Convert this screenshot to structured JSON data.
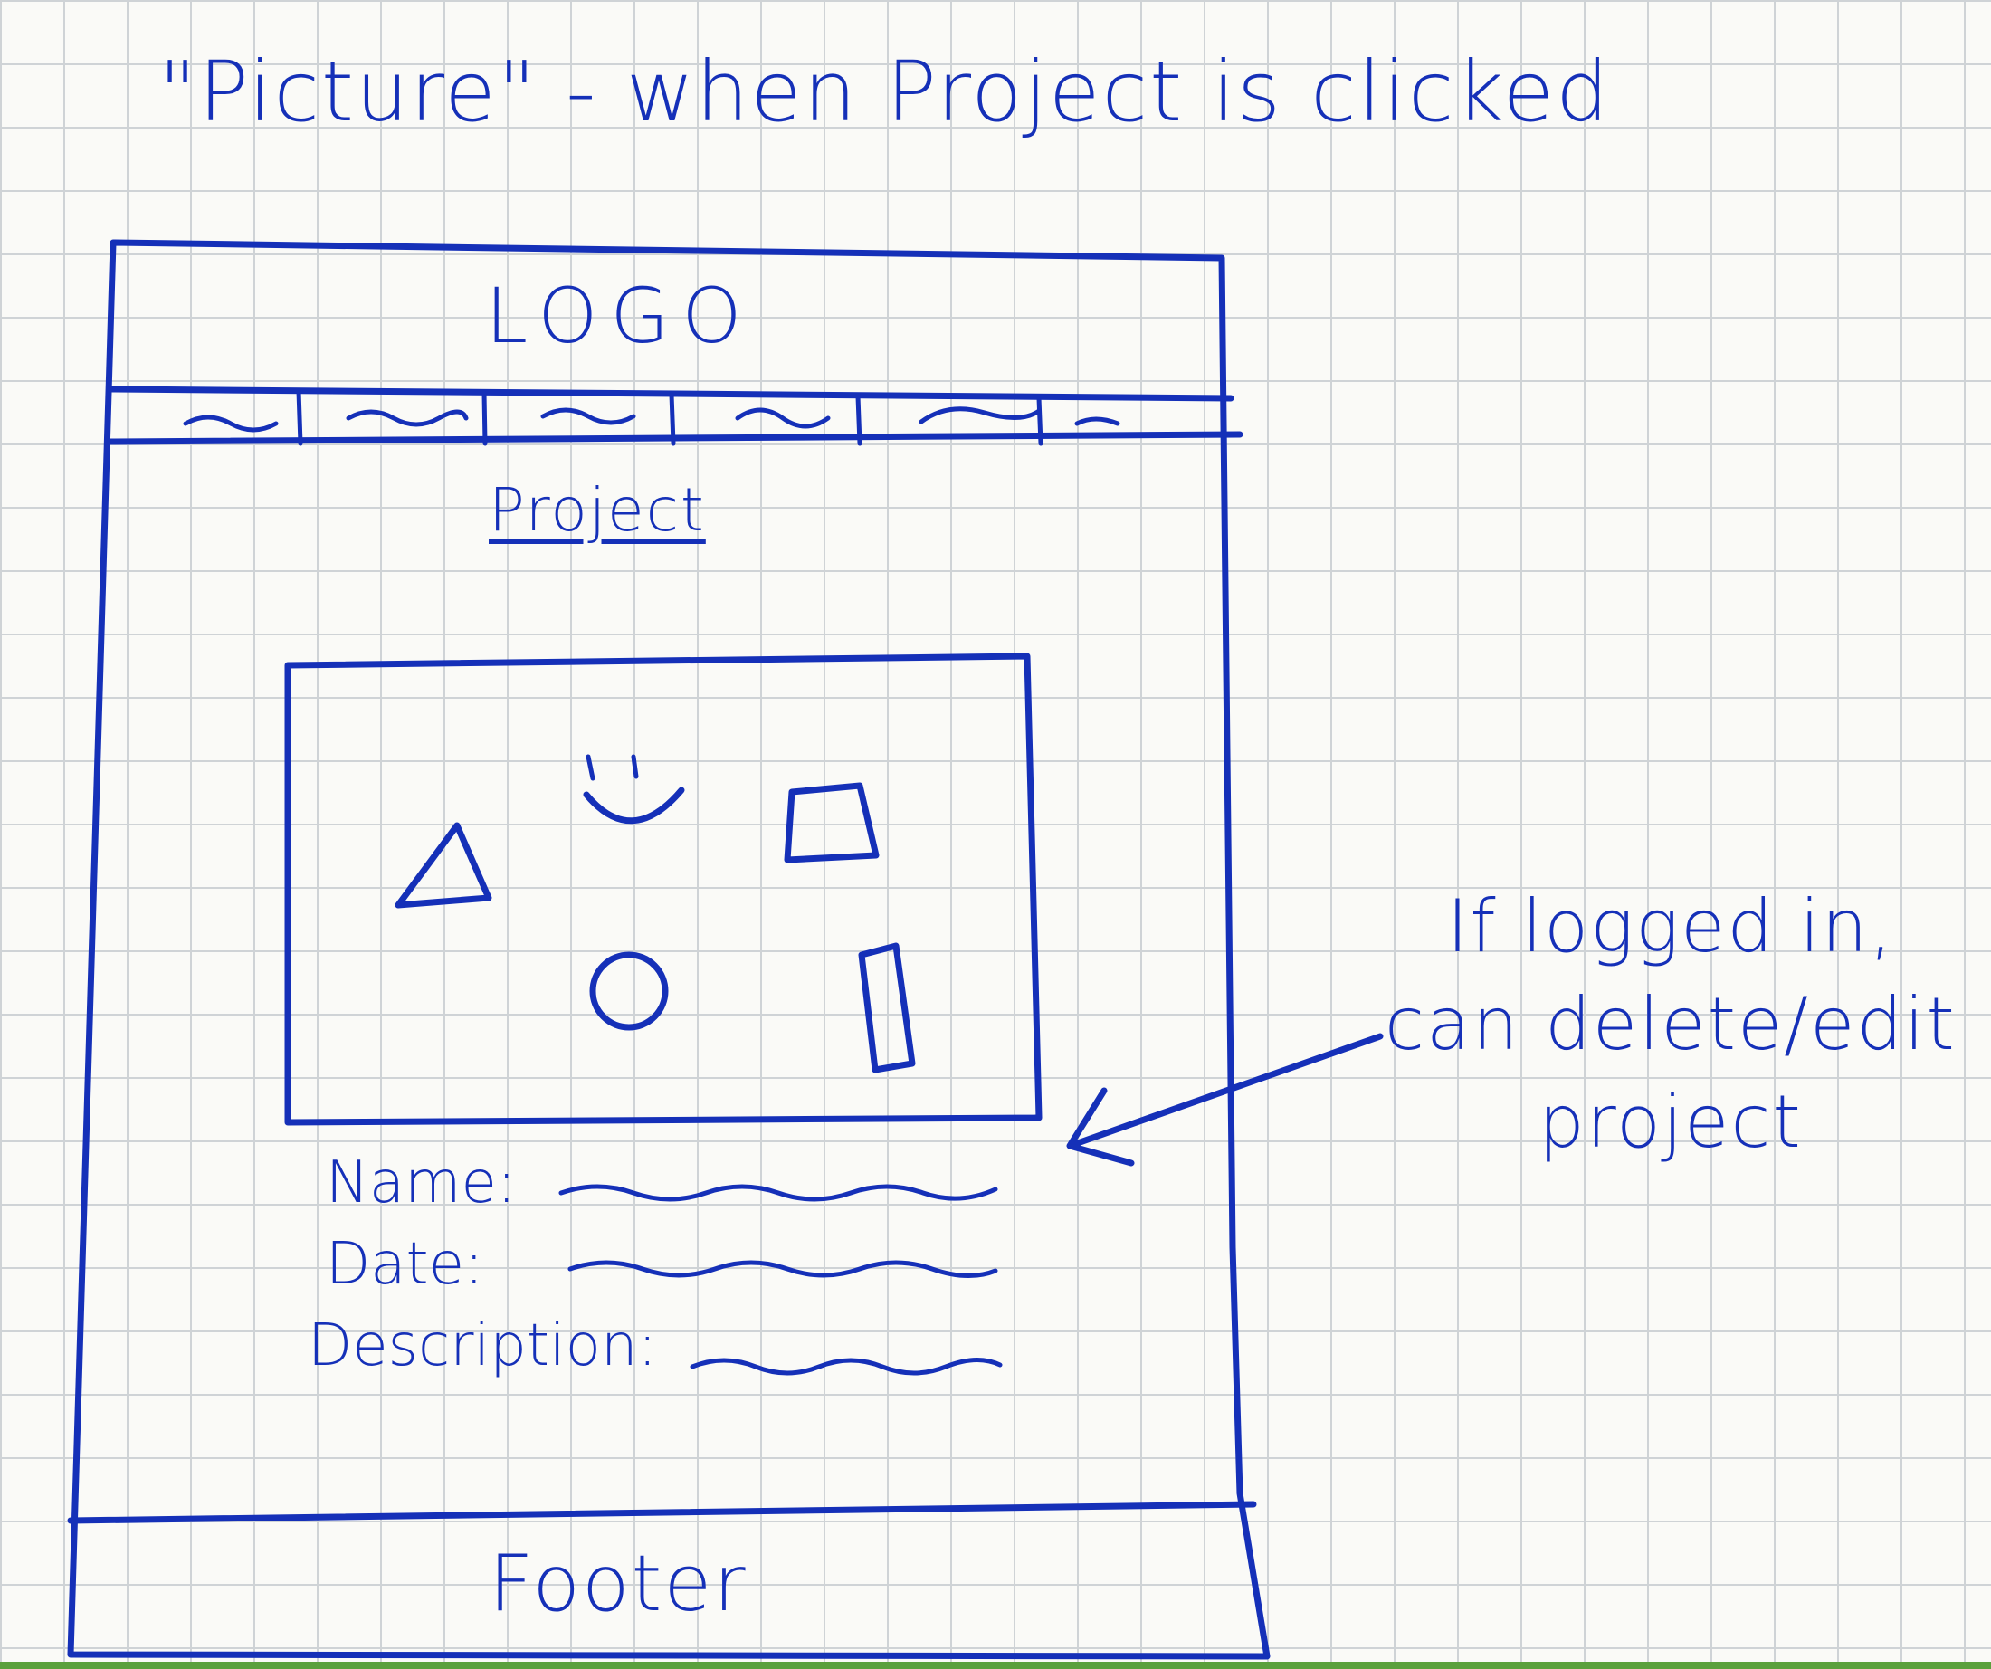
{
  "title": "\"Picture\" - when Project is clicked",
  "wireframe": {
    "logo": "LOGO",
    "nav_items": [
      "~",
      "~",
      "~",
      "~",
      "~",
      "~"
    ],
    "project_heading": "Project",
    "image_shapes": [
      "triangle",
      "smiley",
      "trapezoid",
      "circle",
      "rectangle"
    ],
    "fields": [
      {
        "label": "Name:"
      },
      {
        "label": "Date:"
      },
      {
        "label": "Description:"
      }
    ],
    "footer": "Footer"
  },
  "annotation": {
    "lines": [
      "If logged in,",
      "can delete/edit",
      "project"
    ]
  },
  "colors": {
    "ink": "#1530b8",
    "grid": "#cfd3d6",
    "paper": "#fafaf7"
  }
}
